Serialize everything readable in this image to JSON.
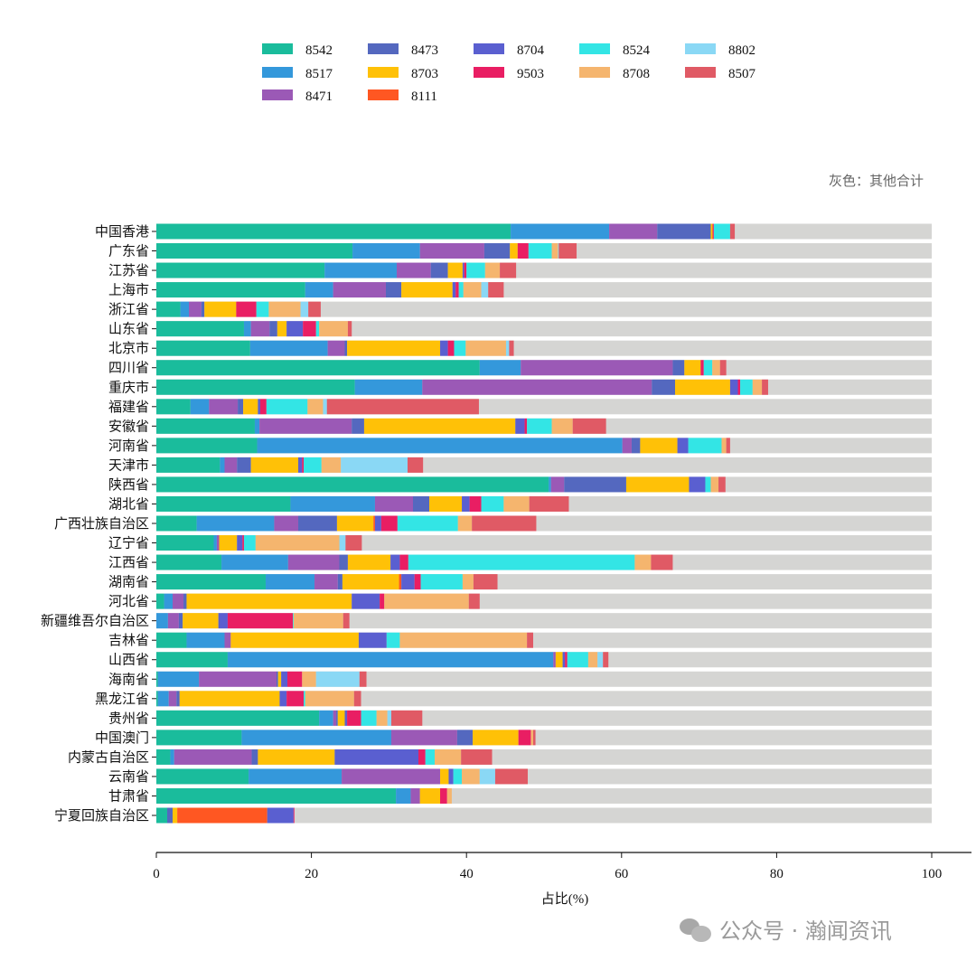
{
  "chart_data": {
    "type": "bar",
    "orientation": "horizontal",
    "stacked": true,
    "xlabel": "占比(%)",
    "ylabel": "",
    "xlim": [
      0,
      100
    ],
    "xticks": [
      "0",
      "20",
      "40",
      "60",
      "80",
      "100"
    ],
    "annotation": "灰色：其他合计",
    "remainder_color": "#d5d5d3",
    "legend_position": "top",
    "categories": [
      "中国香港",
      "广东省",
      "江苏省",
      "上海市",
      "浙江省",
      "山东省",
      "北京市",
      "四川省",
      "重庆市",
      "福建省",
      "安徽省",
      "河南省",
      "天津市",
      "陕西省",
      "湖北省",
      "广西壮族自治区",
      "辽宁省",
      "江西省",
      "湖南省",
      "河北省",
      "新疆维吾尔自治区",
      "吉林省",
      "山西省",
      "海南省",
      "黑龙江省",
      "贵州省",
      "中国澳门",
      "内蒙古自治区",
      "云南省",
      "甘肃省",
      "宁夏回族自治区"
    ],
    "legend_order": [
      "8542",
      "8473",
      "8704",
      "8524",
      "8802",
      "8517",
      "8703",
      "9503",
      "8708",
      "8507",
      "8471",
      "8111"
    ],
    "series": [
      {
        "name": "8542",
        "color": "#1abc9c",
        "values": [
          45.7,
          25.3,
          21.7,
          19.2,
          3.1,
          11.3,
          12.1,
          41.7,
          25.6,
          4.4,
          12.7,
          13.0,
          8.2,
          50.6,
          17.3,
          5.2,
          7.4,
          8.4,
          14.1,
          1.0,
          0,
          3.9,
          9.2,
          0.2,
          0.2,
          21.0,
          11.0,
          1.8,
          11.9,
          30.9,
          1.4
        ]
      },
      {
        "name": "8517",
        "color": "#3498db",
        "values": [
          12.7,
          8.7,
          9.3,
          3.6,
          1.1,
          0.9,
          10.0,
          5.3,
          8.7,
          2.4,
          0.6,
          47.1,
          0.6,
          0.3,
          10.9,
          10.0,
          0.4,
          8.6,
          6.3,
          1.1,
          1.5,
          4.9,
          42.0,
          5.3,
          1.4,
          1.8,
          19.3,
          0.5,
          12.0,
          1.9,
          0
        ]
      },
      {
        "name": "8471",
        "color": "#9b59b6",
        "values": [
          6.2,
          8.3,
          4.4,
          6.8,
          1.6,
          2.4,
          2.2,
          19.6,
          29.6,
          3.7,
          11.9,
          1.2,
          1.6,
          1.7,
          4.9,
          3.1,
          0.3,
          6.6,
          3.0,
          1.4,
          1.4,
          0.8,
          0.3,
          10.0,
          1.0,
          0.4,
          8.5,
          10.0,
          12.7,
          1.2,
          0
        ]
      },
      {
        "name": "8473",
        "color": "#5468bf",
        "values": [
          6.9,
          3.3,
          2.2,
          2.0,
          0.4,
          1.0,
          0.3,
          1.5,
          3.0,
          0.7,
          1.6,
          1.1,
          1.8,
          8.0,
          2.1,
          5.0,
          0,
          1.1,
          0.6,
          0.4,
          0.5,
          0,
          0,
          0.2,
          0.4,
          0.2,
          2.0,
          0.8,
          0,
          0,
          0.7
        ]
      },
      {
        "name": "8703",
        "color": "#ffc107",
        "values": [
          0.2,
          1.0,
          1.9,
          6.6,
          4.1,
          1.2,
          12.0,
          2.1,
          7.1,
          1.9,
          19.5,
          4.8,
          6.1,
          8.1,
          4.2,
          4.7,
          2.3,
          5.5,
          7.3,
          21.3,
          4.6,
          16.5,
          0.9,
          0.4,
          12.9,
          0.9,
          5.9,
          9.9,
          1.1,
          2.6,
          0.6
        ]
      },
      {
        "name": "8111",
        "color": "#ff5722",
        "values": [
          0.1,
          0,
          0,
          0,
          0,
          0,
          0,
          0,
          0,
          0,
          0,
          0,
          0,
          0,
          0,
          0.2,
          0,
          0,
          0.3,
          0,
          0,
          0,
          0,
          0,
          0,
          0,
          0,
          0,
          0,
          0,
          11.6
        ]
      },
      {
        "name": "8704",
        "color": "#5a5fd0",
        "values": [
          0,
          0,
          0.2,
          0.4,
          0,
          2.1,
          1.0,
          0,
          1.0,
          0.3,
          1.2,
          1.4,
          0.5,
          2.1,
          1.0,
          0.8,
          0.7,
          1.2,
          1.7,
          3.6,
          1.2,
          3.6,
          0.3,
          0.8,
          0.9,
          0.3,
          0,
          10.8,
          0.6,
          0,
          3.4
        ]
      },
      {
        "name": "9503",
        "color": "#e91e63",
        "values": [
          0.1,
          1.4,
          0.3,
          0.4,
          2.6,
          1.7,
          0.8,
          0.4,
          0.3,
          0.8,
          0.3,
          0,
          0.2,
          0,
          1.5,
          2.1,
          0.2,
          1.1,
          0.8,
          0.6,
          8.4,
          0,
          0.3,
          1.9,
          2.2,
          1.8,
          1.6,
          0.9,
          0,
          0.9,
          0.1
        ]
      },
      {
        "name": "8524",
        "color": "#33e5e5",
        "values": [
          2.1,
          3.0,
          2.4,
          0.6,
          1.6,
          0.4,
          1.5,
          1.1,
          1.6,
          5.3,
          3.2,
          4.3,
          2.3,
          0.7,
          2.9,
          7.8,
          1.5,
          29.2,
          5.4,
          0,
          0.1,
          1.7,
          2.7,
          0,
          0.2,
          2.0,
          0,
          1.2,
          1.1,
          0,
          0
        ]
      },
      {
        "name": "8708",
        "color": "#f5b56e",
        "values": [
          0,
          0.8,
          1.9,
          2.3,
          4.1,
          3.7,
          5.2,
          1.0,
          1.2,
          2.0,
          2.7,
          0.6,
          2.5,
          1.0,
          3.3,
          1.8,
          10.8,
          2.1,
          1.4,
          10.9,
          6.4,
          16.4,
          1.2,
          1.8,
          6.3,
          1.4,
          0.3,
          3.4,
          2.3,
          0.6,
          0
        ]
      },
      {
        "name": "8802",
        "color": "#8ad8f5",
        "values": [
          0,
          0.1,
          0,
          0.9,
          1.0,
          0,
          0.4,
          0,
          0,
          0.5,
          0,
          0,
          8.6,
          0,
          0,
          0,
          0.8,
          0,
          0,
          0,
          0,
          0,
          0.7,
          5.6,
          0,
          0.5,
          0,
          0,
          2.0,
          0,
          0
        ]
      },
      {
        "name": "8507",
        "color": "#e05a65",
        "values": [
          0.6,
          2.3,
          2.1,
          2.0,
          1.6,
          0.5,
          0.6,
          0.8,
          0.8,
          19.6,
          4.3,
          0.5,
          2.0,
          0.9,
          5.1,
          8.3,
          2.1,
          2.8,
          3.1,
          1.4,
          0.8,
          0.8,
          0.7,
          0.9,
          0.9,
          4.0,
          0.3,
          4.0,
          4.2,
          0,
          0
        ]
      }
    ]
  },
  "watermark": {
    "text": "公众号 · 瀚闻资讯",
    "icon": "wechat-icon"
  }
}
